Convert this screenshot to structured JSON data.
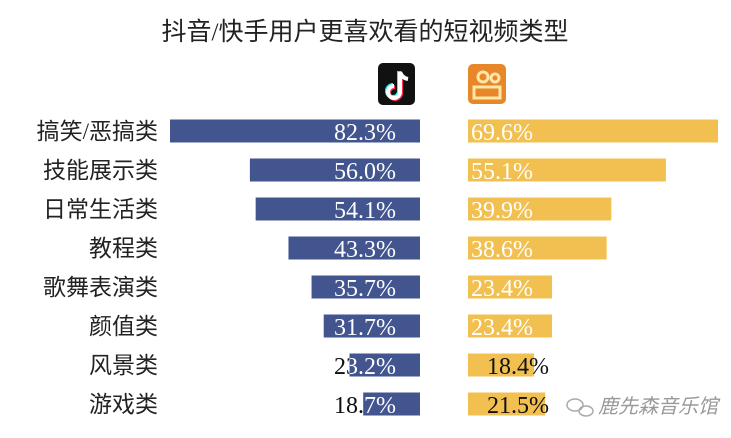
{
  "chart_data": {
    "type": "bar",
    "orientation": "horizontal",
    "title": "抖音/快手用户更喜欢看的短视频类型",
    "categories": [
      "搞笑/恶搞类",
      "技能展示类",
      "日常生活类",
      "教程类",
      "歌舞表演类",
      "颜值类",
      "风景类",
      "游戏类"
    ],
    "series": [
      {
        "name": "抖音",
        "icon": "douyin-logo-icon",
        "color": "#42558f",
        "values": [
          82.3,
          56.0,
          54.1,
          43.3,
          35.7,
          31.7,
          23.2,
          18.7
        ],
        "labels": [
          "82.3%",
          "56.0%",
          "54.1%",
          "43.3%",
          "35.7%",
          "31.7%",
          "23.2%",
          "18.7%"
        ]
      },
      {
        "name": "快手",
        "icon": "kuaishou-logo-icon",
        "color": "#f1c050",
        "values": [
          69.6,
          55.1,
          39.9,
          38.6,
          23.4,
          23.4,
          18.4,
          21.5
        ],
        "labels": [
          "69.6%",
          "55.1%",
          "39.9%",
          "38.6%",
          "23.4%",
          "23.4%",
          "18.4%",
          "21.5%"
        ]
      }
    ],
    "grid": false
  },
  "watermark": {
    "text": "鹿先森音乐馆",
    "icon": "wechat-icon"
  }
}
